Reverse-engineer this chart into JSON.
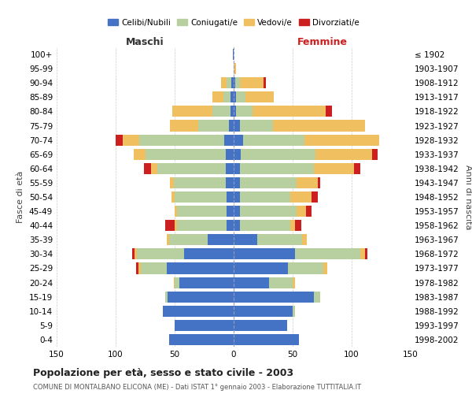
{
  "age_groups": [
    "0-4",
    "5-9",
    "10-14",
    "15-19",
    "20-24",
    "25-29",
    "30-34",
    "35-39",
    "40-44",
    "45-49",
    "50-54",
    "55-59",
    "60-64",
    "65-69",
    "70-74",
    "75-79",
    "80-84",
    "85-89",
    "90-94",
    "95-99",
    "100+"
  ],
  "birth_years": [
    "1998-2002",
    "1993-1997",
    "1988-1992",
    "1983-1987",
    "1978-1982",
    "1973-1977",
    "1968-1972",
    "1963-1967",
    "1958-1962",
    "1953-1957",
    "1948-1952",
    "1943-1947",
    "1938-1942",
    "1933-1937",
    "1928-1932",
    "1923-1927",
    "1918-1922",
    "1913-1917",
    "1908-1912",
    "1903-1907",
    "≤ 1902"
  ],
  "maschi_celibi": [
    55,
    50,
    60,
    56,
    46,
    57,
    42,
    22,
    6,
    6,
    6,
    7,
    7,
    7,
    8,
    4,
    3,
    3,
    2,
    0,
    1
  ],
  "maschi_coniugati": [
    0,
    0,
    0,
    2,
    4,
    22,
    40,
    33,
    42,
    42,
    44,
    44,
    58,
    68,
    72,
    26,
    15,
    6,
    4,
    0,
    0
  ],
  "maschi_vedovi": [
    0,
    0,
    0,
    0,
    1,
    2,
    2,
    2,
    2,
    2,
    3,
    3,
    5,
    10,
    14,
    24,
    34,
    9,
    5,
    0,
    0
  ],
  "maschi_divorziati": [
    0,
    0,
    0,
    0,
    0,
    2,
    2,
    0,
    8,
    0,
    0,
    0,
    6,
    0,
    6,
    0,
    0,
    0,
    0,
    0,
    0
  ],
  "femmine_celibi": [
    55,
    45,
    50,
    68,
    30,
    46,
    52,
    20,
    5,
    5,
    5,
    5,
    5,
    6,
    8,
    5,
    2,
    2,
    1,
    0,
    0
  ],
  "femmine_coniugati": [
    0,
    0,
    2,
    5,
    20,
    30,
    55,
    38,
    43,
    48,
    43,
    48,
    63,
    63,
    52,
    28,
    14,
    8,
    4,
    0,
    0
  ],
  "femmine_vedovi": [
    0,
    0,
    0,
    0,
    2,
    3,
    4,
    4,
    4,
    8,
    18,
    18,
    34,
    48,
    63,
    78,
    62,
    24,
    20,
    2,
    0
  ],
  "femmine_divorziati": [
    0,
    0,
    0,
    0,
    0,
    0,
    2,
    0,
    5,
    5,
    5,
    2,
    5,
    5,
    0,
    0,
    5,
    0,
    2,
    0,
    0
  ],
  "colors": {
    "celibi": "#4472c4",
    "coniugati": "#b8cfa0",
    "vedovi": "#f0c060",
    "divorziati": "#cc2020"
  },
  "title": "Popolazione per età, sesso e stato civile - 2003",
  "subtitle": "COMUNE DI MONTALBANO ELICONA (ME) - Dati ISTAT 1° gennaio 2003 - Elaborazione TUTTITALIA.IT",
  "maschi_label": "Maschi",
  "femmine_label": "Femmine",
  "ylabel_left": "Fasce di età",
  "ylabel_right": "Anni di nascita",
  "xlim": 150,
  "background_color": "#ffffff",
  "grid_color": "#cccccc",
  "legend_labels": [
    "Celibi/Nubili",
    "Coniugati/e",
    "Vedovi/e",
    "Divorziati/e"
  ]
}
